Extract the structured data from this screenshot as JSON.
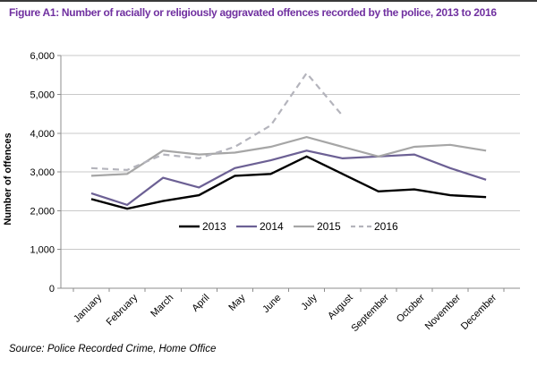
{
  "figure": {
    "title": "Figure A1: Number of racially or religiously aggravated offences recorded by the police, 2013 to 2016"
  },
  "source": "Source: Police Recorded Crime, Home Office",
  "colors": {
    "title": "#7030a0",
    "axis": "#8c8c8c",
    "grid": "#c9c9c9",
    "text": "#000000",
    "series_2013": "#000000",
    "series_2014": "#6c6094",
    "series_2015": "#a6a6a6",
    "series_2016": "#b4b4bc"
  },
  "chart_data": {
    "type": "line",
    "title": "Figure A1: Number of racially or religiously aggravated offences recorded by the police, 2013 to 2016",
    "xlabel": "",
    "ylabel": "Number of offences",
    "ylim": [
      0,
      6000
    ],
    "ytick_step": 1000,
    "grid": true,
    "legend_position": "inside-bottom",
    "categories": [
      "January",
      "February",
      "March",
      "April",
      "May",
      "June",
      "July",
      "August",
      "September",
      "October",
      "November",
      "December"
    ],
    "series": [
      {
        "name": "2013",
        "color": "#000000",
        "dash": null,
        "width": 2.4,
        "values": [
          2300,
          2050,
          2250,
          2400,
          2900,
          2950,
          3400,
          2950,
          2500,
          2550,
          2400,
          2350
        ]
      },
      {
        "name": "2014",
        "color": "#6c6094",
        "dash": null,
        "width": 2.2,
        "values": [
          2450,
          2150,
          2850,
          2600,
          3100,
          3300,
          3550,
          3350,
          3400,
          3450,
          3100,
          2800
        ]
      },
      {
        "name": "2015",
        "color": "#a6a6a6",
        "dash": null,
        "width": 2.2,
        "values": [
          2900,
          2950,
          3550,
          3450,
          3500,
          3650,
          3900,
          3650,
          3400,
          3650,
          3700,
          3550
        ]
      },
      {
        "name": "2016",
        "color": "#b4b4bc",
        "dash": "7,5",
        "width": 2.2,
        "values": [
          3100,
          3050,
          3450,
          3350,
          3650,
          4200,
          5550,
          4450,
          null,
          null,
          null,
          null
        ]
      }
    ]
  }
}
